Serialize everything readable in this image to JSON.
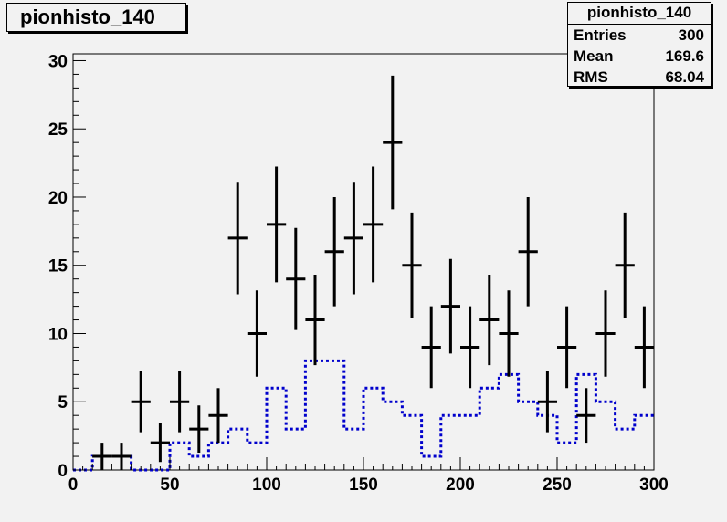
{
  "title": "pionhisto_140",
  "stats": {
    "name": "pionhisto_140",
    "rows": [
      {
        "label": "Entries",
        "value": "300"
      },
      {
        "label": "Mean",
        "value": "169.6"
      },
      {
        "label": "RMS",
        "value": "68.04"
      }
    ]
  },
  "chart_data": {
    "type": "histogram",
    "xlim": [
      0,
      300
    ],
    "ylim": [
      0,
      30.5
    ],
    "x_ticks": [
      0,
      50,
      100,
      150,
      200,
      250,
      300
    ],
    "y_ticks": [
      0,
      5,
      10,
      15,
      20,
      25,
      30
    ],
    "bin_width": 10,
    "series": [
      {
        "style": "errorbar",
        "color": "#000000",
        "x": [
          15,
          25,
          35,
          45,
          55,
          65,
          75,
          85,
          95,
          105,
          115,
          125,
          135,
          145,
          155,
          165,
          175,
          185,
          195,
          205,
          215,
          225,
          235,
          245,
          255,
          265,
          275,
          285,
          295
        ],
        "values": [
          1,
          1,
          5,
          2,
          5,
          3,
          4,
          17,
          10,
          18,
          14,
          11,
          16,
          17,
          18,
          24,
          15,
          9,
          12,
          9,
          11,
          10,
          16,
          5,
          9,
          4,
          10,
          15,
          9
        ]
      },
      {
        "style": "dotted-step",
        "color": "#0000cc",
        "bin_edges": [
          0,
          10,
          20,
          30,
          40,
          50,
          60,
          70,
          80,
          90,
          100,
          110,
          120,
          130,
          140,
          150,
          160,
          170,
          180,
          190,
          200,
          210,
          220,
          230,
          240,
          250,
          260,
          270,
          280,
          290,
          300
        ],
        "values": [
          0,
          1,
          1,
          0,
          0,
          2,
          1,
          2,
          3,
          2,
          6,
          3,
          8,
          8,
          3,
          6,
          5,
          4,
          1,
          4,
          4,
          6,
          7,
          5,
          4,
          2,
          7,
          5,
          3,
          4
        ]
      }
    ]
  }
}
